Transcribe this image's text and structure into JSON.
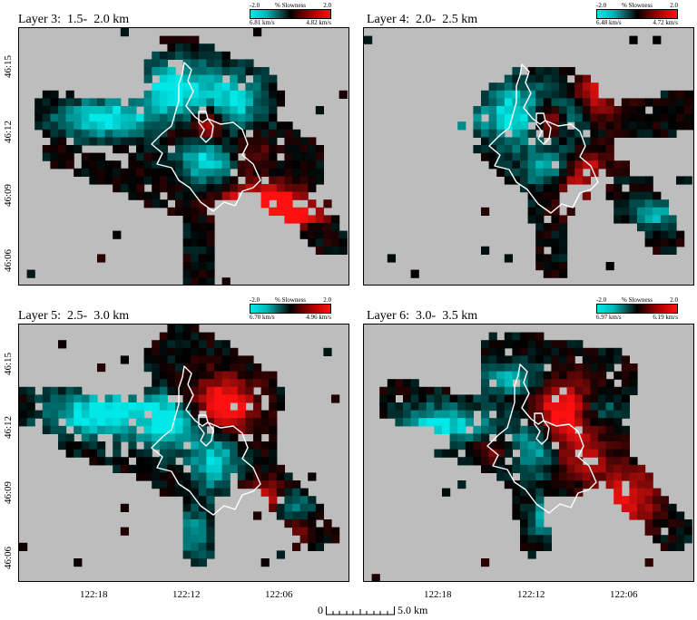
{
  "panels": [
    {
      "id": "layer3",
      "title": "Layer 3:  1.5-  2.0 km",
      "cb_min": "-2.0",
      "cb_max": "2.0",
      "cb_left": "6.81 km/s",
      "cb_right": "4.82 km/s",
      "cb_mid": "% Slowness"
    },
    {
      "id": "layer4",
      "title": "Layer 4:  2.0-  2.5 km",
      "cb_min": "-2.0",
      "cb_max": "2.0",
      "cb_left": "6.48 km/s",
      "cb_right": "4.72 km/s",
      "cb_mid": "% Slowness"
    },
    {
      "id": "layer5",
      "title": "Layer 5:  2.5-  3.0 km",
      "cb_min": "-2.0",
      "cb_max": "2.0",
      "cb_left": "6.70 km/s",
      "cb_right": "4.96 km/s",
      "cb_mid": "% Slowness"
    },
    {
      "id": "layer6",
      "title": "Layer 6:  3.0-  3.5 km",
      "cb_min": "-2.0",
      "cb_max": "2.0",
      "cb_left": "6.97 km/s",
      "cb_right": "6.19 km/s",
      "cb_mid": "% Slowness"
    }
  ],
  "lat_ticks": [
    "46:15",
    "46:12",
    "46:09",
    "46:06"
  ],
  "lon_ticks": [
    "122:18",
    "122:12",
    "122:06"
  ],
  "scale_bar": {
    "start": "0",
    "end": "5.0 km"
  },
  "colors": {
    "background": "#bdbdbd",
    "fast": "#00e8e8",
    "slow": "#ff1010",
    "outline": "#ffffff"
  }
}
